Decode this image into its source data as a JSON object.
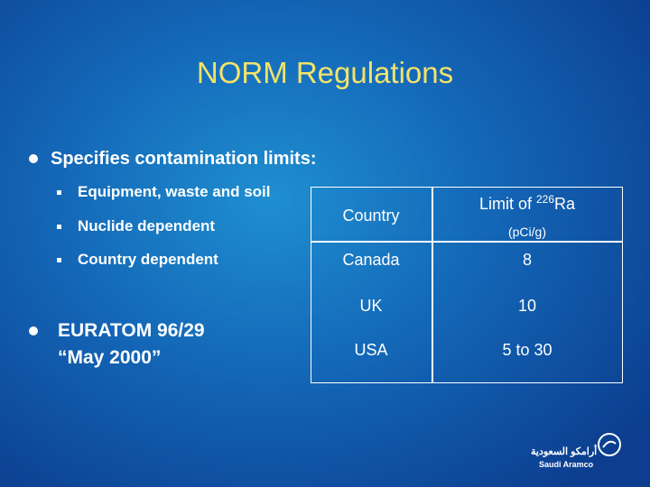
{
  "title": "NORM Regulations",
  "bullets": [
    {
      "text": "Specifies contamination limits:",
      "sub": [
        "Equipment, waste and soil",
        "Nuclide dependent",
        "Country dependent"
      ]
    },
    {
      "lines": [
        "EURATOM 96/29",
        "“May 2000”"
      ]
    }
  ],
  "table": {
    "header": {
      "country": "Country",
      "limit_prefix": "Limit of",
      "isotope_mass": "226",
      "isotope": "Ra",
      "units": "(pCi/g)"
    },
    "rows": [
      [
        "Canada",
        "8"
      ],
      [
        "UK",
        "10"
      ],
      [
        "USA",
        "5 to 30"
      ]
    ]
  },
  "logo": {
    "arabic": "أرامكو السعودية",
    "english": "Saudi Aramco"
  }
}
